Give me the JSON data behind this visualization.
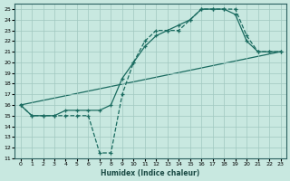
{
  "xlabel": "Humidex (Indice chaleur)",
  "ylabel": "",
  "xlim": [
    -0.5,
    23.5
  ],
  "ylim": [
    11,
    25.5
  ],
  "xticks": [
    0,
    1,
    2,
    3,
    4,
    5,
    6,
    7,
    8,
    9,
    10,
    11,
    12,
    13,
    14,
    15,
    16,
    17,
    18,
    19,
    20,
    21,
    22,
    23
  ],
  "yticks": [
    11,
    12,
    13,
    14,
    15,
    16,
    17,
    18,
    19,
    20,
    21,
    22,
    23,
    24,
    25
  ],
  "bg_color": "#c8e8e0",
  "grid_color": "#a0c8c0",
  "line_color": "#1a6b60",
  "line1_x": [
    0,
    1,
    2,
    3,
    4,
    5,
    6,
    7,
    8,
    9,
    10,
    11,
    12,
    13,
    14,
    15,
    16,
    17,
    18,
    19,
    20,
    21,
    22,
    23
  ],
  "line1_y": [
    16,
    15,
    15,
    15,
    15,
    15,
    15,
    11.5,
    11.5,
    17,
    20,
    22,
    23,
    23,
    23,
    24,
    25,
    25,
    25,
    25,
    22.5,
    21,
    21,
    21
  ],
  "line2_x": [
    0,
    1,
    2,
    3,
    4,
    5,
    6,
    7,
    8,
    9,
    10,
    11,
    12,
    13,
    14,
    15,
    16,
    17,
    18,
    19,
    20,
    21,
    22,
    23
  ],
  "line2_y": [
    16,
    15,
    15,
    15,
    15.5,
    15.5,
    15.5,
    15.5,
    16,
    18.5,
    20,
    21.5,
    22.5,
    23,
    23.5,
    24,
    25,
    25,
    25,
    24.5,
    22,
    21,
    21,
    21
  ],
  "line3_x": [
    0,
    23
  ],
  "line3_y": [
    16,
    21
  ]
}
